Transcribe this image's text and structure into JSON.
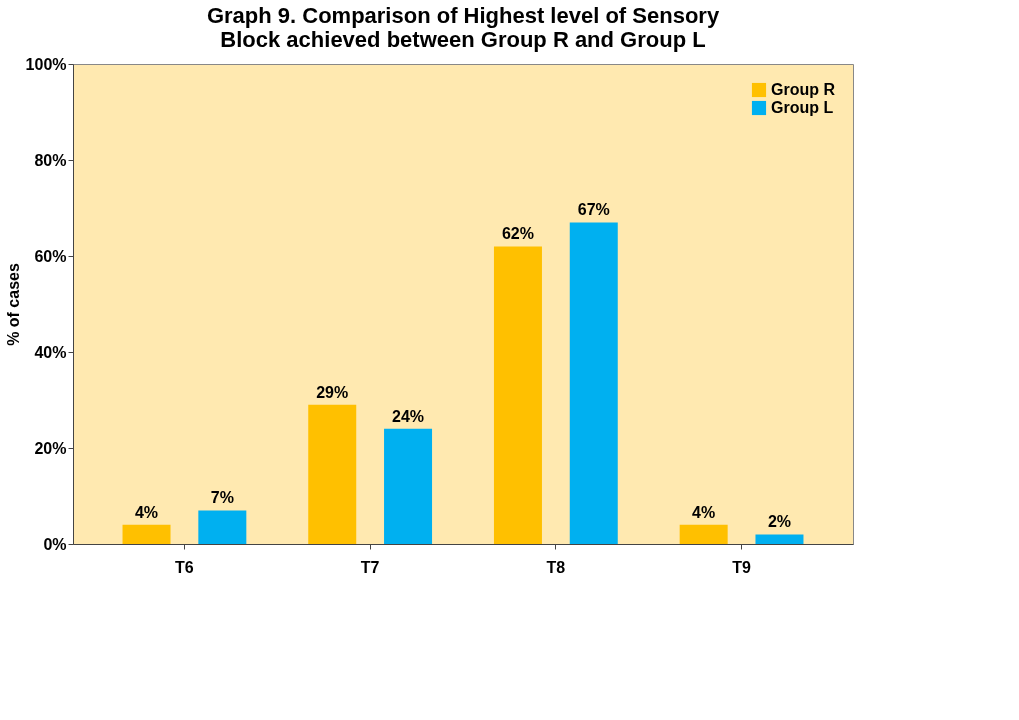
{
  "chart_data": {
    "type": "bar",
    "title": [
      "Graph 9. Comparison of Highest level of Sensory",
      "Block achieved between Group R and Group L"
    ],
    "ylabel": "% of cases",
    "categories": [
      "T6",
      "T7",
      "T8",
      "T9"
    ],
    "series": [
      {
        "name": "Group R",
        "color": "#ffc000",
        "values": [
          4,
          29,
          62,
          4
        ]
      },
      {
        "name": "Group L",
        "color": "#00b0f0",
        "values": [
          7,
          24,
          67,
          2
        ]
      }
    ],
    "value_labels": [
      [
        "4%",
        "29%",
        "62%",
        "4%"
      ],
      [
        "7%",
        "24%",
        "67%",
        "2%"
      ]
    ],
    "ylim": [
      0,
      100
    ],
    "yticks": [
      {
        "value": 0,
        "label": "0%"
      },
      {
        "value": 20,
        "label": "20%"
      },
      {
        "value": 40,
        "label": "40%"
      },
      {
        "value": 60,
        "label": "60%"
      },
      {
        "value": 80,
        "label": "80%"
      },
      {
        "value": 100,
        "label": "100%"
      }
    ],
    "grid": false,
    "legend": "top right"
  }
}
